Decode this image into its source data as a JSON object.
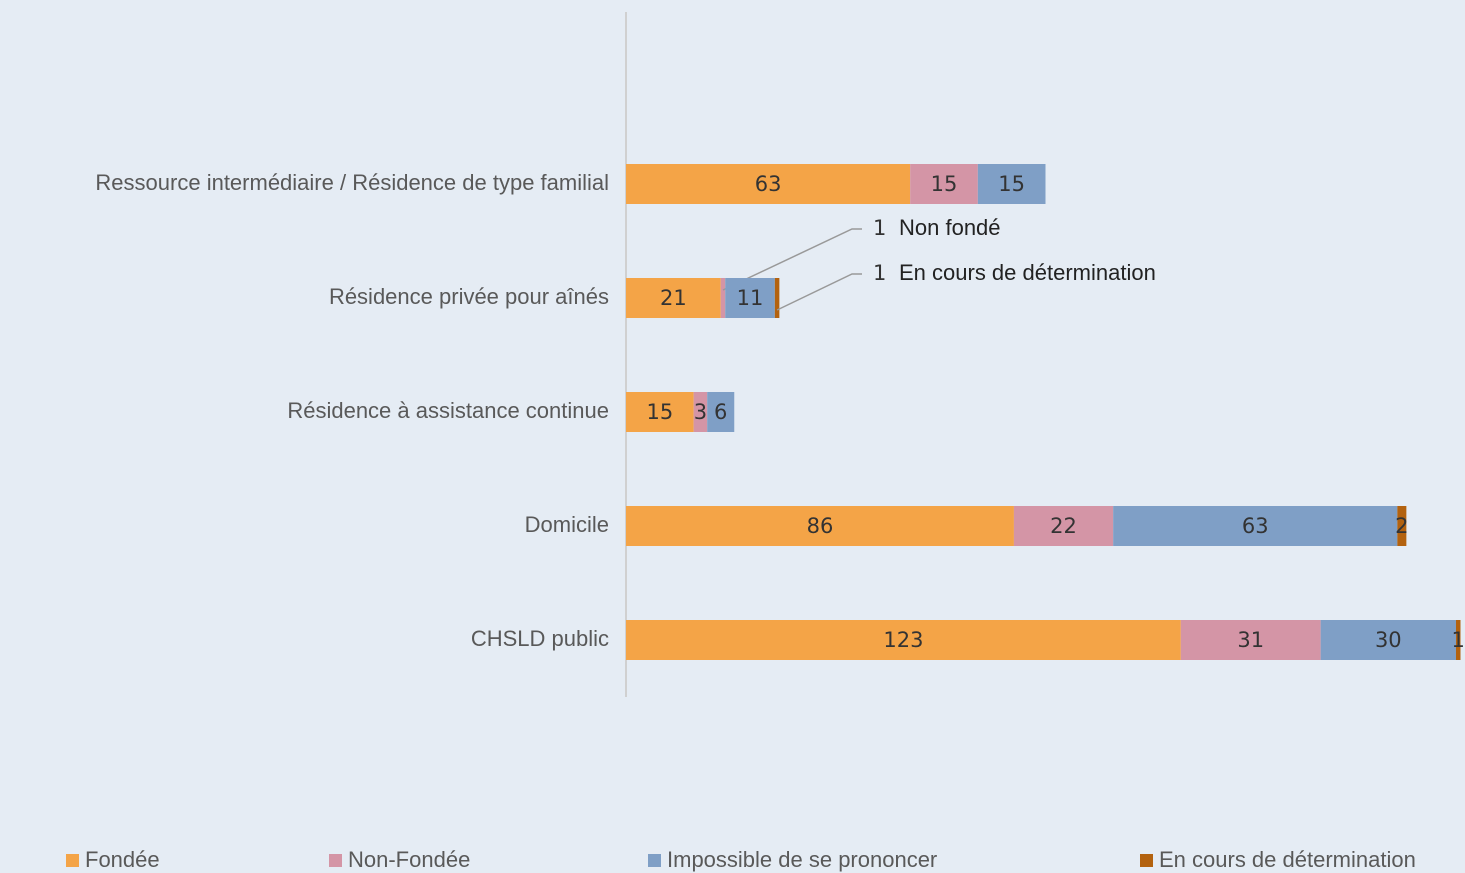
{
  "chart_data": {
    "type": "stacked-bar-horizontal",
    "categories": [
      "Ressource intermédiaire / Résidence de type familial",
      "Résidence privée pour aînés",
      "Résidence à assistance continue",
      "Domicile",
      "CHSLD public"
    ],
    "series": [
      {
        "name": "Fondée",
        "color": "#f4a447",
        "values": [
          63,
          21,
          15,
          86,
          123
        ]
      },
      {
        "name": "Non-Fondée",
        "color": "#d495a6",
        "values": [
          15,
          1,
          3,
          22,
          31
        ]
      },
      {
        "name": "Impossible de se prononcer",
        "color": "#7f9fc6",
        "values": [
          15,
          11,
          6,
          63,
          30
        ]
      },
      {
        "name": "En cours de détermination",
        "color": "#b3620f",
        "values": [
          null,
          1,
          null,
          2,
          1
        ]
      }
    ],
    "annotations": [
      "Non fondé",
      "En cours de détermination"
    ],
    "xlim": [
      0,
      186
    ]
  }
}
